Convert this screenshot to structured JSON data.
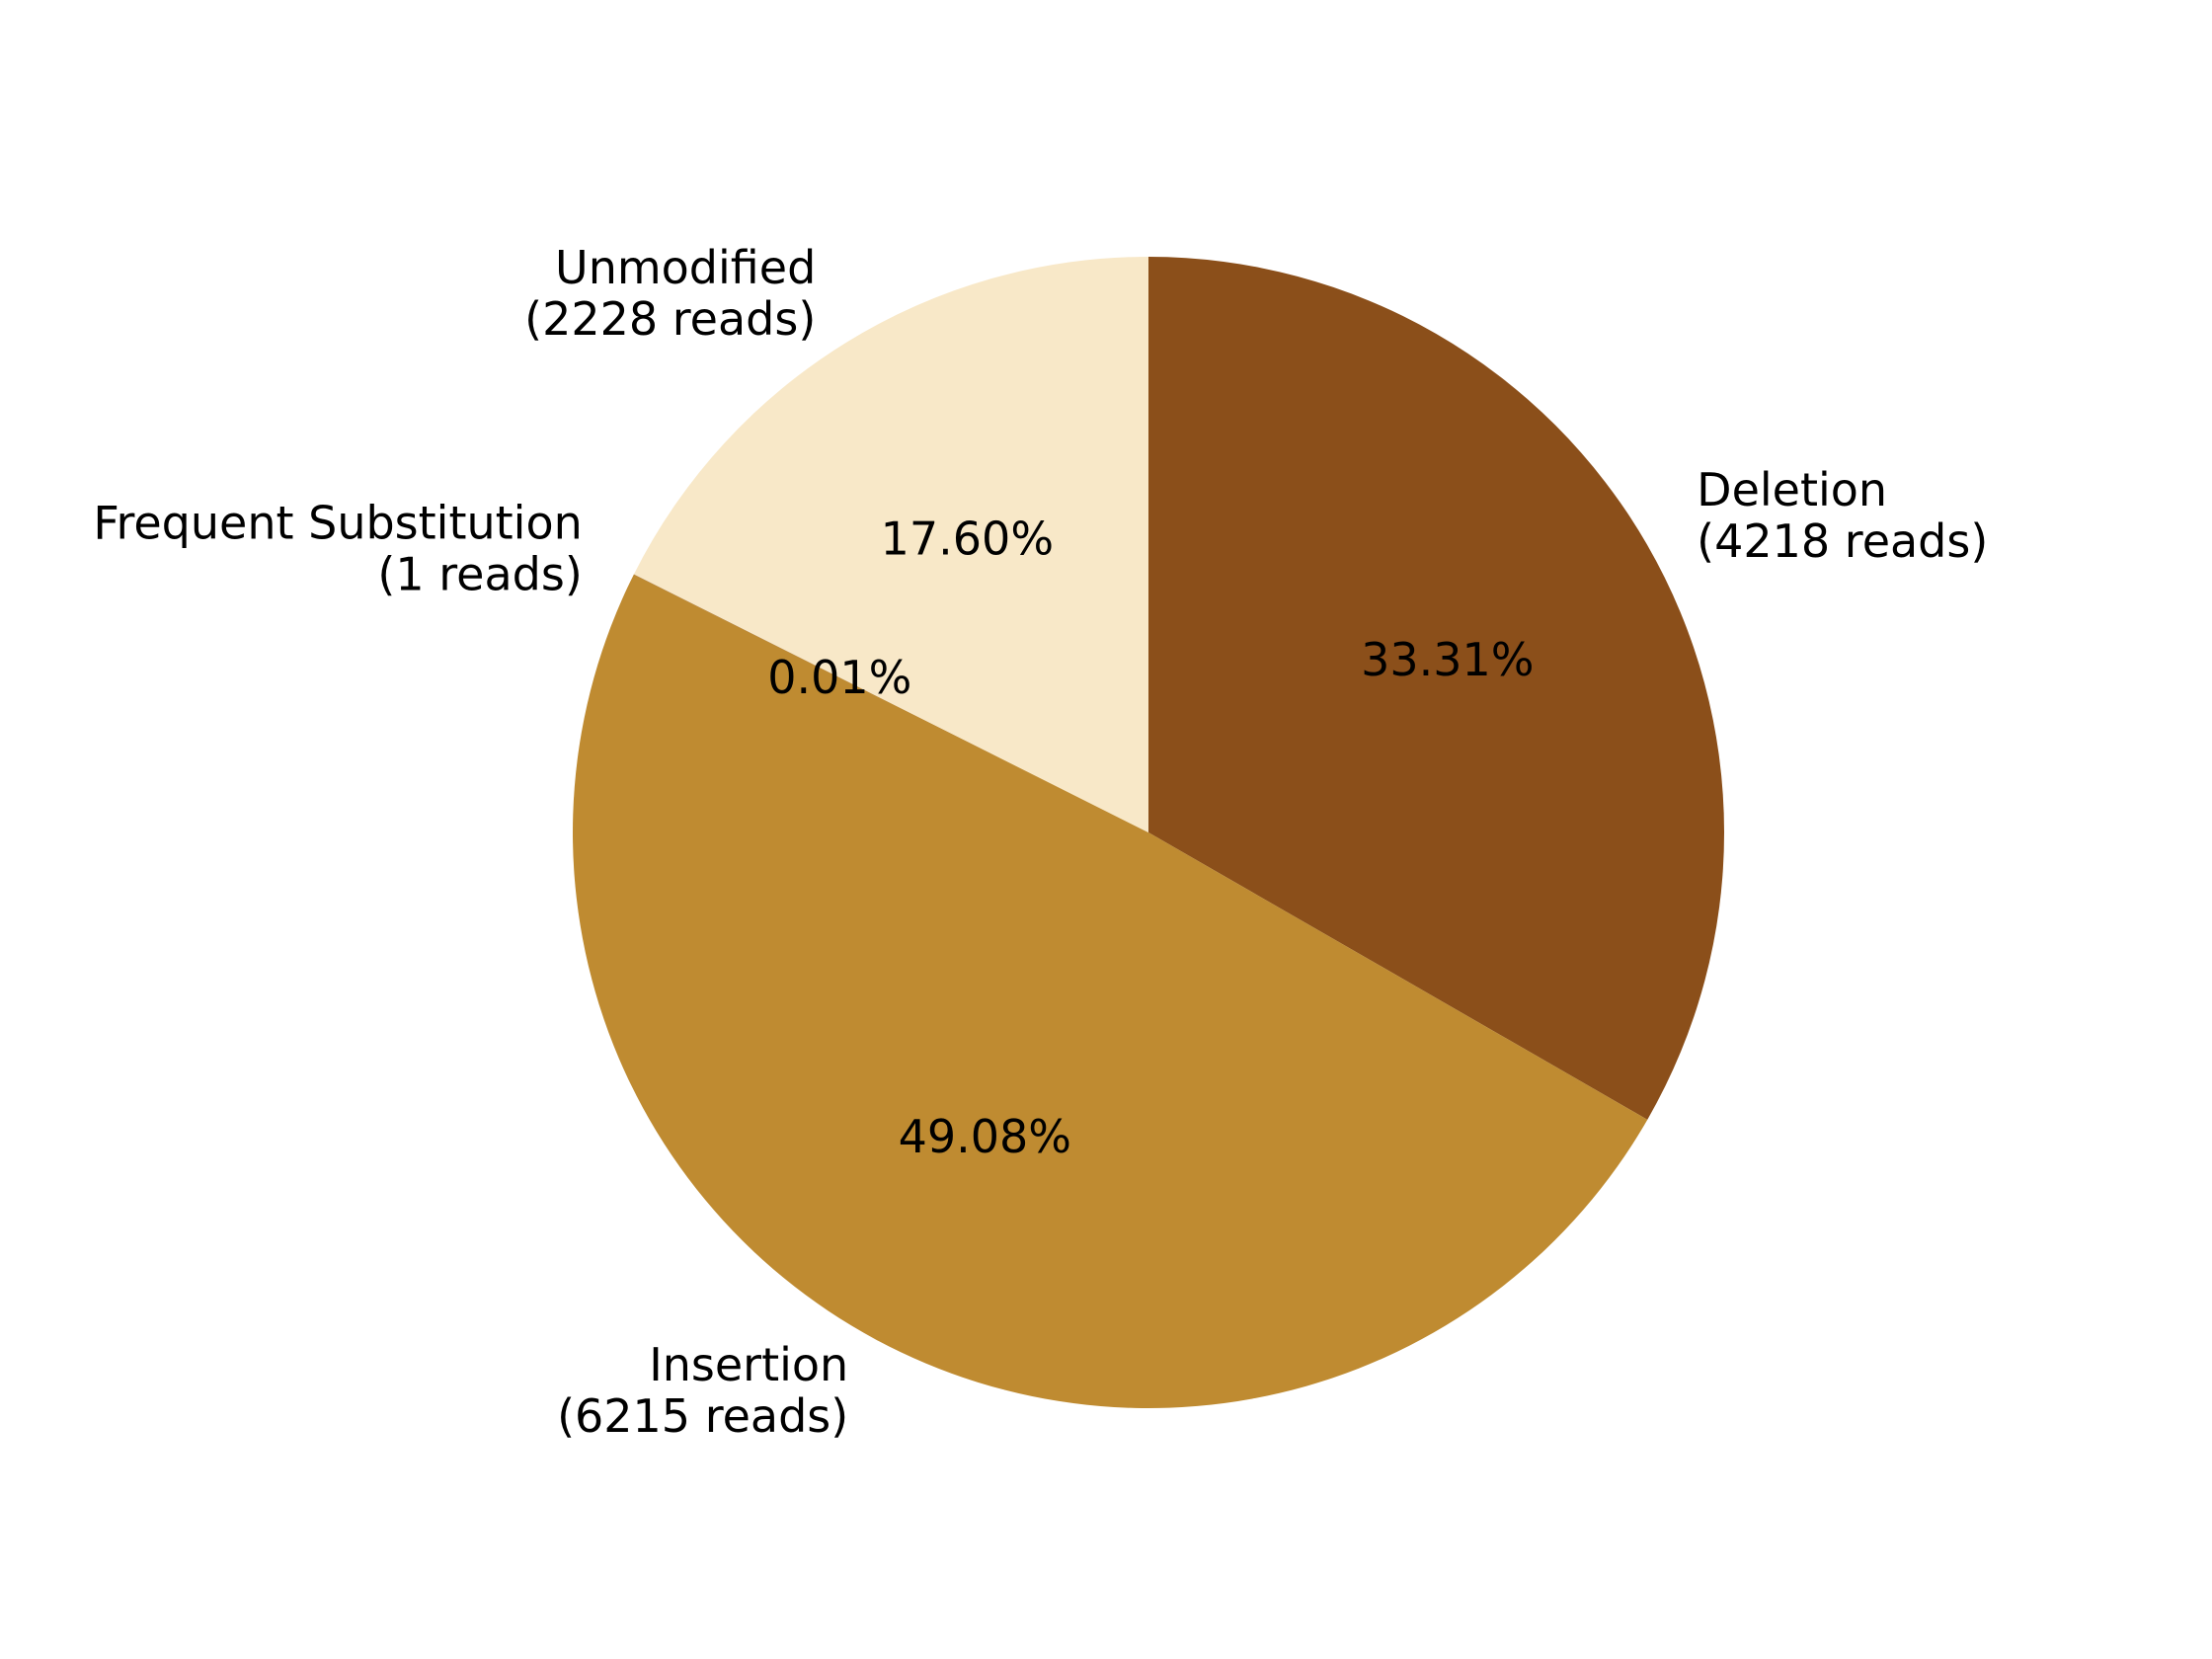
{
  "chart_data": {
    "type": "pie",
    "title": "",
    "start_angle_deg": 90,
    "direction": "clockwise",
    "slices": [
      {
        "name": "Deletion",
        "reads_text": "(4218 reads)",
        "reads": 4218,
        "percent": 33.31,
        "percent_label": "33.31%",
        "color": "#8B4F1A"
      },
      {
        "name": "Insertion",
        "reads_text": "(6215 reads)",
        "reads": 6215,
        "percent": 49.08,
        "percent_label": "49.08%",
        "color": "#BF8B31"
      },
      {
        "name": "Frequent Substitution",
        "reads_text": "(1 reads)",
        "reads": 1,
        "percent": 0.01,
        "percent_label": "0.01%",
        "color": "#8B4F1A"
      },
      {
        "name": "Unmodified",
        "reads_text": "(2228 reads)",
        "reads": 2228,
        "percent": 17.6,
        "percent_label": "17.60%",
        "color": "#F8E8C8"
      }
    ]
  }
}
